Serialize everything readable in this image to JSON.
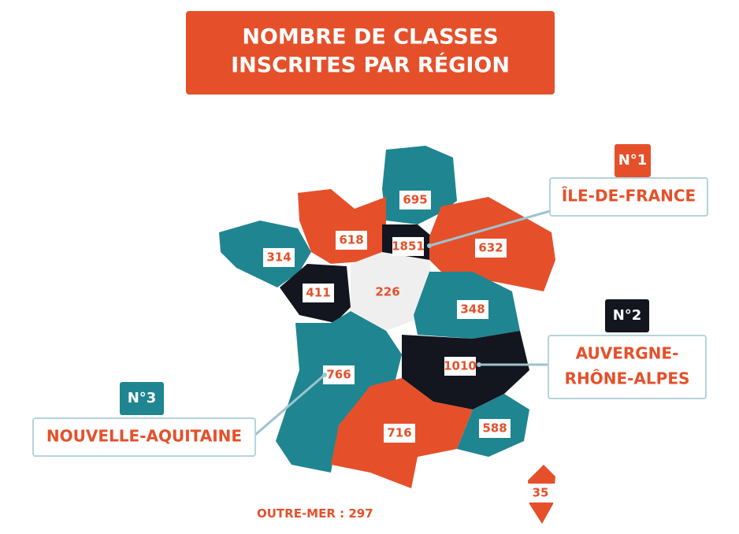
{
  "title": [
    "NOMBRE DE CLASSES",
    "INSCRITES PAR RÉGION"
  ],
  "regions": [
    {
      "value": 695,
      "color": "#1f8591"
    },
    {
      "value": 618,
      "color": "#e5502a"
    },
    {
      "value": 1851,
      "color": "#13161f"
    },
    {
      "value": 632,
      "color": "#e5502a"
    },
    {
      "value": 314,
      "color": "#1f8591"
    },
    {
      "value": 411,
      "color": "#13161f"
    },
    {
      "value": 226,
      "color": "#efefef"
    },
    {
      "value": 348,
      "color": "#1f8591"
    },
    {
      "value": 766,
      "color": "#1f8591"
    },
    {
      "value": 1010,
      "color": "#13161f"
    },
    {
      "value": 716,
      "color": "#e5502a"
    },
    {
      "value": 588,
      "color": "#1f8591"
    },
    {
      "value": 35,
      "color": "#e5502a"
    }
  ],
  "callouts": [
    {
      "rank": "N°1",
      "name": [
        "ÎLE-DE-FRANCE"
      ],
      "color": "#e5502a"
    },
    {
      "rank": "N°2",
      "name": [
        "AUVERGNE-",
        "RHÔNE-ALPES"
      ],
      "color": "#13161f"
    },
    {
      "rank": "N°3",
      "name": [
        "NOUVELLE-AQUITAINE"
      ],
      "color": "#1f8591"
    }
  ],
  "outre_mer": {
    "label": "OUTRE-MER :",
    "value": 297
  }
}
